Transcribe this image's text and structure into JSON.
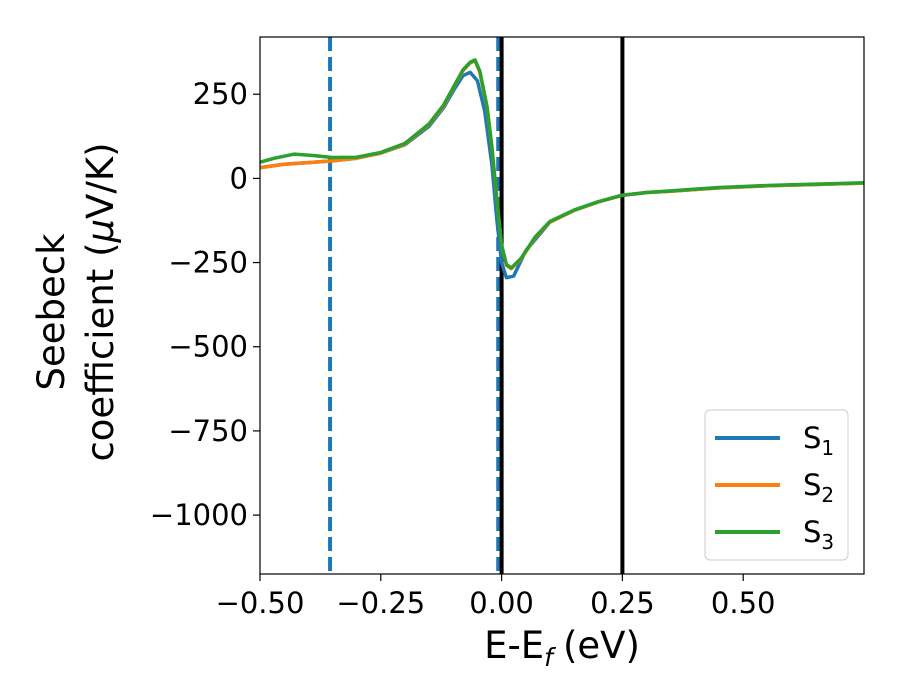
{
  "chart_data": {
    "type": "line",
    "xlabel": "E-E",
    "xlabel_subscript": "f",
    "xlabel_unit": "(eV)",
    "ylabel_line1": "Seebeck",
    "ylabel_line2_text": "coefficient  (",
    "ylabel_mu": "μ",
    "ylabel_line2_end": "V/K)",
    "xlim": [
      -0.5,
      0.75
    ],
    "ylim": [
      -1175,
      420
    ],
    "xticks": [
      -0.5,
      -0.25,
      0.0,
      0.25,
      0.5
    ],
    "xtick_labels": [
      "−0.50",
      "−0.25",
      "0.00",
      "0.25",
      "0.50"
    ],
    "yticks": [
      250,
      0,
      -250,
      -500,
      -750,
      -1000
    ],
    "ytick_labels": [
      "250",
      "0",
      "−250",
      "−500",
      "−750",
      "−1000"
    ],
    "grid": false,
    "legend_position": "bottom-right",
    "vlines": [
      {
        "x": -0.355,
        "style": "dashed",
        "color": "#1f77b4"
      },
      {
        "x": -0.007,
        "style": "dashed",
        "color": "#1f77b4"
      },
      {
        "x": 0.0,
        "style": "solid",
        "color": "#000000"
      },
      {
        "x": 0.25,
        "style": "solid",
        "color": "#000000"
      }
    ],
    "series": [
      {
        "name": "S",
        "subscript": "1",
        "color": "#1f77b4",
        "points": [
          [
            -0.5,
            32
          ],
          [
            -0.45,
            42
          ],
          [
            -0.4,
            47
          ],
          [
            -0.35,
            52
          ],
          [
            -0.3,
            60
          ],
          [
            -0.25,
            75
          ],
          [
            -0.2,
            100
          ],
          [
            -0.15,
            155
          ],
          [
            -0.12,
            210
          ],
          [
            -0.1,
            260
          ],
          [
            -0.08,
            305
          ],
          [
            -0.065,
            315
          ],
          [
            -0.05,
            290
          ],
          [
            -0.035,
            200
          ],
          [
            -0.02,
            40
          ],
          [
            -0.01,
            -120
          ],
          [
            0.0,
            -250
          ],
          [
            0.01,
            -295
          ],
          [
            0.025,
            -290
          ],
          [
            0.05,
            -215
          ],
          [
            0.1,
            -130
          ],
          [
            0.15,
            -95
          ],
          [
            0.2,
            -70
          ],
          [
            0.25,
            -50
          ],
          [
            0.3,
            -42
          ],
          [
            0.35,
            -38
          ],
          [
            0.4,
            -33
          ],
          [
            0.45,
            -28
          ],
          [
            0.5,
            -25
          ],
          [
            0.55,
            -22
          ],
          [
            0.6,
            -20
          ],
          [
            0.65,
            -18
          ],
          [
            0.7,
            -16
          ],
          [
            0.75,
            -14
          ]
        ]
      },
      {
        "name": "S",
        "subscript": "2",
        "color": "#ff7f0e",
        "points": [
          [
            -0.5,
            32
          ],
          [
            -0.45,
            42
          ],
          [
            -0.4,
            47
          ],
          [
            -0.35,
            52
          ],
          [
            -0.3,
            60
          ],
          [
            -0.25,
            75
          ],
          [
            -0.2,
            102
          ],
          [
            -0.15,
            160
          ],
          [
            -0.12,
            215
          ],
          [
            -0.1,
            268
          ],
          [
            -0.08,
            320
          ],
          [
            -0.065,
            343
          ],
          [
            -0.055,
            350
          ],
          [
            -0.045,
            315
          ],
          [
            -0.03,
            210
          ],
          [
            -0.02,
            90
          ],
          [
            -0.01,
            -60
          ],
          [
            0.0,
            -200
          ],
          [
            0.01,
            -258
          ],
          [
            0.02,
            -268
          ],
          [
            0.04,
            -240
          ],
          [
            0.07,
            -175
          ],
          [
            0.1,
            -130
          ],
          [
            0.15,
            -95
          ],
          [
            0.2,
            -70
          ],
          [
            0.25,
            -50
          ],
          [
            0.3,
            -42
          ],
          [
            0.35,
            -38
          ],
          [
            0.4,
            -33
          ],
          [
            0.45,
            -28
          ],
          [
            0.5,
            -25
          ],
          [
            0.55,
            -22
          ],
          [
            0.6,
            -20
          ],
          [
            0.65,
            -18
          ],
          [
            0.7,
            -16
          ],
          [
            0.75,
            -14
          ]
        ]
      },
      {
        "name": "S",
        "subscript": "3",
        "color": "#2ca02c",
        "points": [
          [
            -0.5,
            48
          ],
          [
            -0.47,
            60
          ],
          [
            -0.43,
            72
          ],
          [
            -0.39,
            68
          ],
          [
            -0.35,
            62
          ],
          [
            -0.3,
            63
          ],
          [
            -0.25,
            77
          ],
          [
            -0.2,
            104
          ],
          [
            -0.15,
            162
          ],
          [
            -0.12,
            218
          ],
          [
            -0.1,
            270
          ],
          [
            -0.08,
            322
          ],
          [
            -0.065,
            345
          ],
          [
            -0.055,
            352
          ],
          [
            -0.045,
            318
          ],
          [
            -0.03,
            212
          ],
          [
            -0.02,
            92
          ],
          [
            -0.01,
            -58
          ],
          [
            0.0,
            -198
          ],
          [
            0.01,
            -256
          ],
          [
            0.02,
            -266
          ],
          [
            0.04,
            -238
          ],
          [
            0.07,
            -173
          ],
          [
            0.1,
            -128
          ],
          [
            0.15,
            -94
          ],
          [
            0.2,
            -69
          ],
          [
            0.25,
            -50
          ],
          [
            0.3,
            -42
          ],
          [
            0.35,
            -37
          ],
          [
            0.4,
            -32
          ],
          [
            0.45,
            -27
          ],
          [
            0.5,
            -24
          ],
          [
            0.55,
            -21
          ],
          [
            0.6,
            -19
          ],
          [
            0.65,
            -17
          ],
          [
            0.7,
            -15
          ],
          [
            0.75,
            -13
          ]
        ]
      }
    ]
  }
}
